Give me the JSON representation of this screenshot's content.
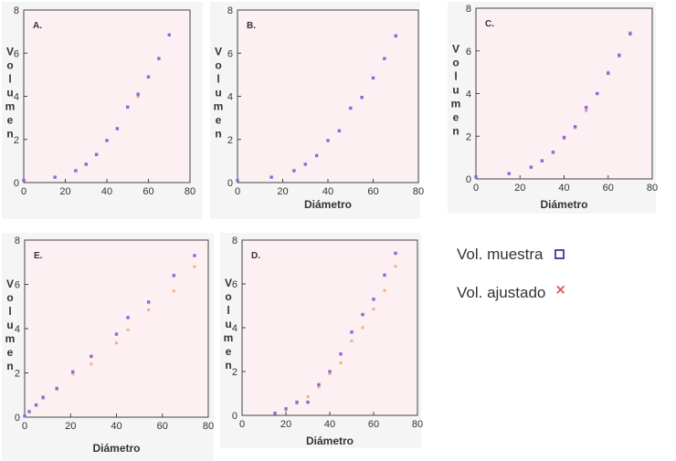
{
  "chart_data": [
    {
      "type": "scatter",
      "panel_label": "A.",
      "xlabel": "",
      "ylabel": "Volumen",
      "xlim": [
        0,
        80
      ],
      "ylim": [
        0,
        8
      ],
      "xticks": [
        0,
        20,
        40,
        60,
        80
      ],
      "yticks": [
        0,
        2,
        4,
        6,
        8
      ],
      "series": [
        {
          "name": "Vol. muestra",
          "color": "#8a6ad6",
          "x": [
            0,
            15,
            25,
            30,
            35,
            40,
            45,
            50,
            55,
            60,
            65,
            70
          ],
          "y": [
            0.1,
            0.25,
            0.55,
            0.85,
            1.3,
            1.95,
            2.5,
            3.5,
            4.1,
            4.9,
            5.75,
            6.85
          ]
        },
        {
          "name": "Vol. ajustado",
          "color": "#ef8fa8",
          "x": [
            0,
            15,
            25,
            30,
            35,
            40,
            45,
            50,
            55,
            60,
            65,
            70
          ],
          "y": [
            0.1,
            0.25,
            0.55,
            0.85,
            1.3,
            1.95,
            2.5,
            3.5,
            4.0,
            4.9,
            5.75,
            6.85
          ]
        }
      ]
    },
    {
      "type": "scatter",
      "panel_label": "B.",
      "xlabel": "Diámetro",
      "ylabel": "Volumen",
      "xlim": [
        0,
        80
      ],
      "ylim": [
        0,
        8
      ],
      "xticks": [
        0,
        20,
        40,
        60,
        80
      ],
      "yticks": [
        0,
        2,
        4,
        6,
        8
      ],
      "series": [
        {
          "name": "Vol. muestra",
          "color": "#8a6ad6",
          "x": [
            0,
            15,
            25,
            30,
            35,
            40,
            45,
            50,
            55,
            60,
            65,
            70
          ],
          "y": [
            0.1,
            0.25,
            0.55,
            0.85,
            1.25,
            1.95,
            2.4,
            3.45,
            3.95,
            4.85,
            5.75,
            6.8
          ]
        },
        {
          "name": "Vol. ajustado",
          "color": "#ef8fa8",
          "x": [
            0,
            15,
            25,
            30,
            35,
            40,
            45,
            50,
            55,
            60,
            65,
            70
          ],
          "y": [
            0.1,
            0.25,
            0.55,
            0.85,
            1.25,
            1.95,
            2.4,
            3.45,
            3.95,
            4.85,
            5.75,
            6.8
          ]
        }
      ]
    },
    {
      "type": "scatter",
      "panel_label": "C.",
      "xlabel": "Diámetro",
      "ylabel": "Volumen",
      "xlim": [
        0,
        80
      ],
      "ylim": [
        0,
        8
      ],
      "xticks": [
        0,
        20,
        40,
        60,
        80
      ],
      "yticks": [
        0,
        2,
        4,
        6,
        8
      ],
      "series": [
        {
          "name": "Vol. muestra",
          "color": "#8a6ad6",
          "x": [
            0,
            15,
            25,
            30,
            35,
            40,
            45,
            50,
            55,
            60,
            65,
            70
          ],
          "y": [
            0.1,
            0.25,
            0.55,
            0.85,
            1.25,
            1.95,
            2.45,
            3.35,
            4.0,
            4.95,
            5.8,
            6.8
          ]
        },
        {
          "name": "Vol. ajustado",
          "color": "#ef8fa8",
          "x": [
            0,
            15,
            25,
            30,
            35,
            40,
            45,
            50,
            55,
            60,
            65,
            70
          ],
          "y": [
            0.1,
            0.25,
            0.55,
            0.85,
            1.25,
            1.9,
            2.4,
            3.2,
            4.0,
            5.0,
            5.75,
            6.85
          ]
        }
      ]
    },
    {
      "type": "scatter",
      "panel_label": "E.",
      "xlabel": "Diámetro",
      "ylabel": "Volumen",
      "xlim": [
        0,
        80
      ],
      "ylim": [
        0,
        8
      ],
      "xticks": [
        0,
        20,
        40,
        60,
        80
      ],
      "yticks": [
        0,
        2,
        4,
        6,
        8
      ],
      "series": [
        {
          "name": "Vol. muestra",
          "color": "#8a6ad6",
          "x": [
            0,
            2,
            5,
            8,
            14,
            21,
            29,
            40,
            45,
            54,
            65,
            74
          ],
          "y": [
            0.05,
            0.25,
            0.55,
            0.9,
            1.3,
            2.05,
            2.75,
            3.75,
            4.5,
            5.2,
            6.4,
            7.3
          ]
        },
        {
          "name": "Vol. ajustado",
          "color": "#f5b07a",
          "x": [
            0,
            2,
            5,
            8,
            14,
            21,
            29,
            40,
            45,
            54,
            65,
            74
          ],
          "y": [
            0.05,
            0.25,
            0.55,
            0.85,
            1.25,
            1.95,
            2.4,
            3.35,
            3.95,
            4.85,
            5.7,
            6.8
          ]
        }
      ]
    },
    {
      "type": "scatter",
      "panel_label": "D.",
      "xlabel": "Diámetro",
      "ylabel": "Volumen",
      "xlim": [
        0,
        80
      ],
      "ylim": [
        0,
        8
      ],
      "xticks": [
        0,
        20,
        40,
        60,
        80
      ],
      "yticks": [
        0,
        2,
        4,
        6,
        8
      ],
      "series": [
        {
          "name": "Vol. muestra",
          "color": "#8a6ad6",
          "x": [
            15,
            20,
            25,
            30,
            35,
            40,
            45,
            50,
            55,
            60,
            65,
            70
          ],
          "y": [
            0.1,
            0.3,
            0.6,
            0.6,
            1.4,
            2.0,
            2.8,
            3.8,
            4.6,
            5.3,
            6.4,
            7.4
          ]
        },
        {
          "name": "Vol. ajustado",
          "color": "#f5b07a",
          "x": [
            15,
            20,
            25,
            30,
            35,
            40,
            45,
            50,
            55,
            60,
            65,
            70
          ],
          "y": [
            0.1,
            0.25,
            0.55,
            0.85,
            1.3,
            1.9,
            2.4,
            3.4,
            4.0,
            4.85,
            5.7,
            6.8
          ]
        }
      ]
    }
  ],
  "legend": {
    "items": [
      {
        "label": "Vol. muestra",
        "marker": "square",
        "color": "#4a4aa8"
      },
      {
        "label": "Vol. ajustado",
        "marker": "cross",
        "color": "#e05252"
      }
    ]
  }
}
